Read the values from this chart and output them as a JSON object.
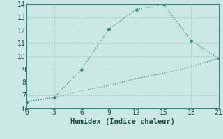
{
  "xlabel": "Humidex (Indice chaleur)",
  "line1_x": [
    0,
    3,
    6,
    9,
    12,
    15,
    18,
    21
  ],
  "line1_y": [
    6.5,
    6.85,
    9.0,
    12.1,
    13.6,
    14.0,
    11.2,
    9.85
  ],
  "line2_x": [
    0,
    3,
    6,
    9,
    12,
    15,
    18,
    21
  ],
  "line2_y": [
    6.5,
    6.85,
    7.35,
    7.75,
    8.3,
    8.7,
    9.2,
    9.85
  ],
  "line_color": "#2e8b7a",
  "marker": "D",
  "marker_size": 2.5,
  "xlim": [
    0,
    21
  ],
  "ylim": [
    6,
    14
  ],
  "xticks": [
    0,
    3,
    6,
    9,
    12,
    15,
    18,
    21
  ],
  "yticks": [
    6,
    7,
    8,
    9,
    10,
    11,
    12,
    13,
    14
  ],
  "bg_color": "#cce8e4",
  "grid_color": "#b8d8d4",
  "xlabel_fontsize": 7.5,
  "tick_fontsize": 7
}
